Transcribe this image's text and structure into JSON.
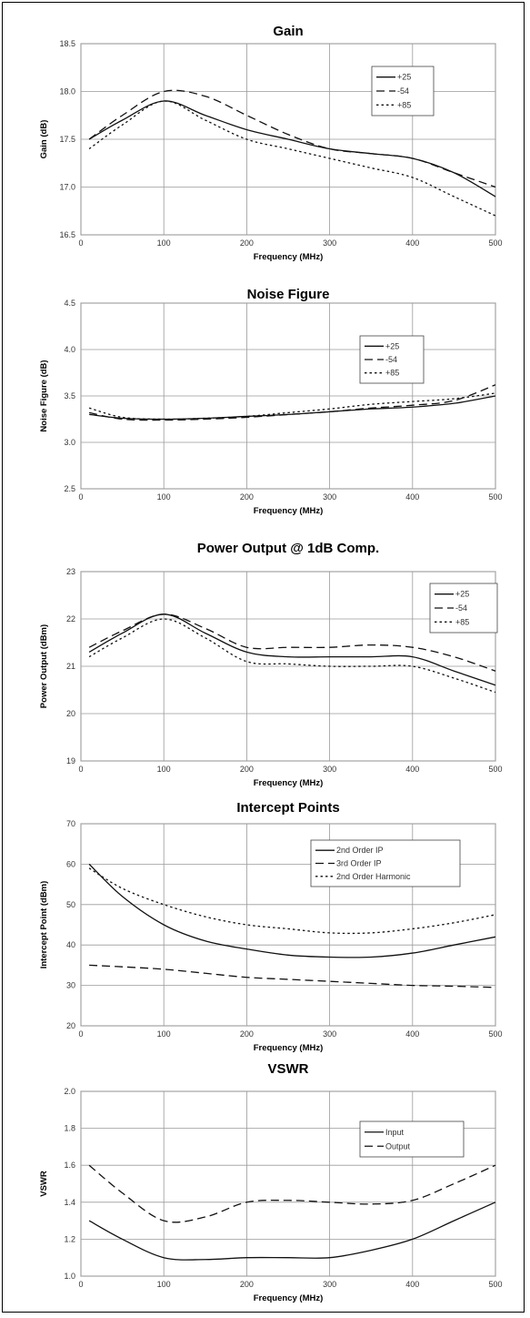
{
  "chart_data": [
    {
      "type": "line",
      "title": "Gain",
      "xlabel": "Frequency (MHz)",
      "ylabel": "Gain (dB)",
      "xlim": [
        0,
        500
      ],
      "ylim": [
        16.5,
        18.5
      ],
      "xticks": [
        "0",
        "100",
        "200",
        "300",
        "400",
        "500"
      ],
      "yticks": [
        "16.5",
        "17.0",
        "17.5",
        "18.0",
        "18.5"
      ],
      "grid": true,
      "legend_position": "top-right",
      "x": [
        10,
        50,
        100,
        150,
        200,
        250,
        300,
        350,
        400,
        450,
        500
      ],
      "series": [
        {
          "name": "+25",
          "style": "solid",
          "values": [
            17.5,
            17.7,
            17.9,
            17.75,
            17.6,
            17.5,
            17.4,
            17.35,
            17.3,
            17.15,
            16.9
          ]
        },
        {
          "name": "-54",
          "style": "dashed",
          "values": [
            17.5,
            17.75,
            18.0,
            17.95,
            17.75,
            17.55,
            17.4,
            17.35,
            17.3,
            17.15,
            17.0
          ]
        },
        {
          "name": "+85",
          "style": "dotted",
          "values": [
            17.4,
            17.65,
            17.9,
            17.7,
            17.5,
            17.4,
            17.3,
            17.2,
            17.1,
            16.9,
            16.7
          ]
        }
      ]
    },
    {
      "type": "line",
      "title": "Noise Figure",
      "xlabel": "Frequency (MHz)",
      "ylabel": "Noise Figure (dB)",
      "xlim": [
        0,
        500
      ],
      "ylim": [
        2.5,
        4.5
      ],
      "xticks": [
        "0",
        "100",
        "200",
        "300",
        "400",
        "500"
      ],
      "yticks": [
        "2.5",
        "3.0",
        "3.5",
        "4.0",
        "4.5"
      ],
      "grid": true,
      "legend_position": "top-right",
      "x": [
        10,
        50,
        100,
        150,
        200,
        250,
        300,
        350,
        400,
        450,
        500
      ],
      "series": [
        {
          "name": "+25",
          "style": "solid",
          "values": [
            3.3,
            3.26,
            3.25,
            3.26,
            3.28,
            3.3,
            3.33,
            3.36,
            3.38,
            3.42,
            3.5
          ]
        },
        {
          "name": "-54",
          "style": "dashed",
          "values": [
            3.32,
            3.25,
            3.24,
            3.25,
            3.27,
            3.3,
            3.33,
            3.37,
            3.4,
            3.45,
            3.62
          ]
        },
        {
          "name": "+85",
          "style": "dotted",
          "values": [
            3.37,
            3.27,
            3.25,
            3.26,
            3.28,
            3.32,
            3.36,
            3.41,
            3.44,
            3.47,
            3.53
          ]
        }
      ]
    },
    {
      "type": "line",
      "title": "Power Output @ 1dB Comp.",
      "xlabel": "Frequency (MHz)",
      "ylabel": "Power Output (dBm)",
      "xlim": [
        0,
        500
      ],
      "ylim": [
        19,
        23
      ],
      "xticks": [
        "0",
        "100",
        "200",
        "300",
        "400",
        "500"
      ],
      "yticks": [
        "19",
        "20",
        "21",
        "22",
        "23"
      ],
      "grid": true,
      "legend_position": "top-right",
      "x": [
        10,
        50,
        100,
        150,
        200,
        250,
        300,
        350,
        400,
        450,
        500
      ],
      "series": [
        {
          "name": "+25",
          "style": "solid",
          "values": [
            21.3,
            21.7,
            22.1,
            21.7,
            21.3,
            21.2,
            21.2,
            21.2,
            21.2,
            20.9,
            20.6
          ]
        },
        {
          "name": "-54",
          "style": "dashed",
          "values": [
            21.4,
            21.75,
            22.1,
            21.8,
            21.4,
            21.4,
            21.4,
            21.45,
            21.4,
            21.2,
            20.9
          ]
        },
        {
          "name": "+85",
          "style": "dotted",
          "values": [
            21.2,
            21.6,
            22.0,
            21.6,
            21.1,
            21.05,
            21.0,
            21.0,
            21.0,
            20.75,
            20.45
          ]
        }
      ]
    },
    {
      "type": "line",
      "title": "Intercept Points",
      "xlabel": "Frequency (MHz)",
      "ylabel": "Intercept Point (dBm)",
      "xlim": [
        0,
        500
      ],
      "ylim": [
        20,
        70
      ],
      "xticks": [
        "0",
        "100",
        "200",
        "300",
        "400",
        "500"
      ],
      "yticks": [
        "20",
        "30",
        "40",
        "50",
        "60",
        "70"
      ],
      "grid": true,
      "legend_position": "top-right",
      "x": [
        10,
        50,
        100,
        150,
        200,
        250,
        300,
        350,
        400,
        450,
        500
      ],
      "series": [
        {
          "name": "2nd Order IP",
          "style": "solid",
          "values": [
            60,
            52,
            45,
            41,
            39,
            37.5,
            37,
            37,
            38,
            40,
            42
          ]
        },
        {
          "name": "3rd Order IP",
          "style": "dashed",
          "values": [
            35,
            34.6,
            34,
            33,
            32,
            31.5,
            31,
            30.5,
            30,
            29.8,
            29.5
          ]
        },
        {
          "name": "2nd Order Harmonic",
          "style": "dotted",
          "values": [
            59,
            54,
            50,
            47,
            45,
            44,
            43,
            43,
            44,
            45.5,
            47.5
          ]
        }
      ]
    },
    {
      "type": "line",
      "title": "VSWR",
      "xlabel": "Frequency (MHz)",
      "ylabel": "VSWR",
      "xlim": [
        0,
        500
      ],
      "ylim": [
        1.0,
        2.0
      ],
      "xticks": [
        "0",
        "100",
        "200",
        "300",
        "400",
        "500"
      ],
      "yticks": [
        "1.0",
        "1.2",
        "1.4",
        "1.6",
        "1.8",
        "2.0"
      ],
      "grid": true,
      "legend_position": "top-right",
      "x": [
        10,
        50,
        100,
        150,
        200,
        250,
        300,
        350,
        400,
        450,
        500
      ],
      "series": [
        {
          "name": "Input",
          "style": "solid",
          "values": [
            1.3,
            1.2,
            1.1,
            1.09,
            1.1,
            1.1,
            1.1,
            1.14,
            1.2,
            1.3,
            1.4
          ]
        },
        {
          "name": "Output",
          "style": "dashed",
          "values": [
            1.6,
            1.45,
            1.3,
            1.32,
            1.4,
            1.41,
            1.4,
            1.39,
            1.41,
            1.5,
            1.6
          ]
        }
      ]
    }
  ]
}
